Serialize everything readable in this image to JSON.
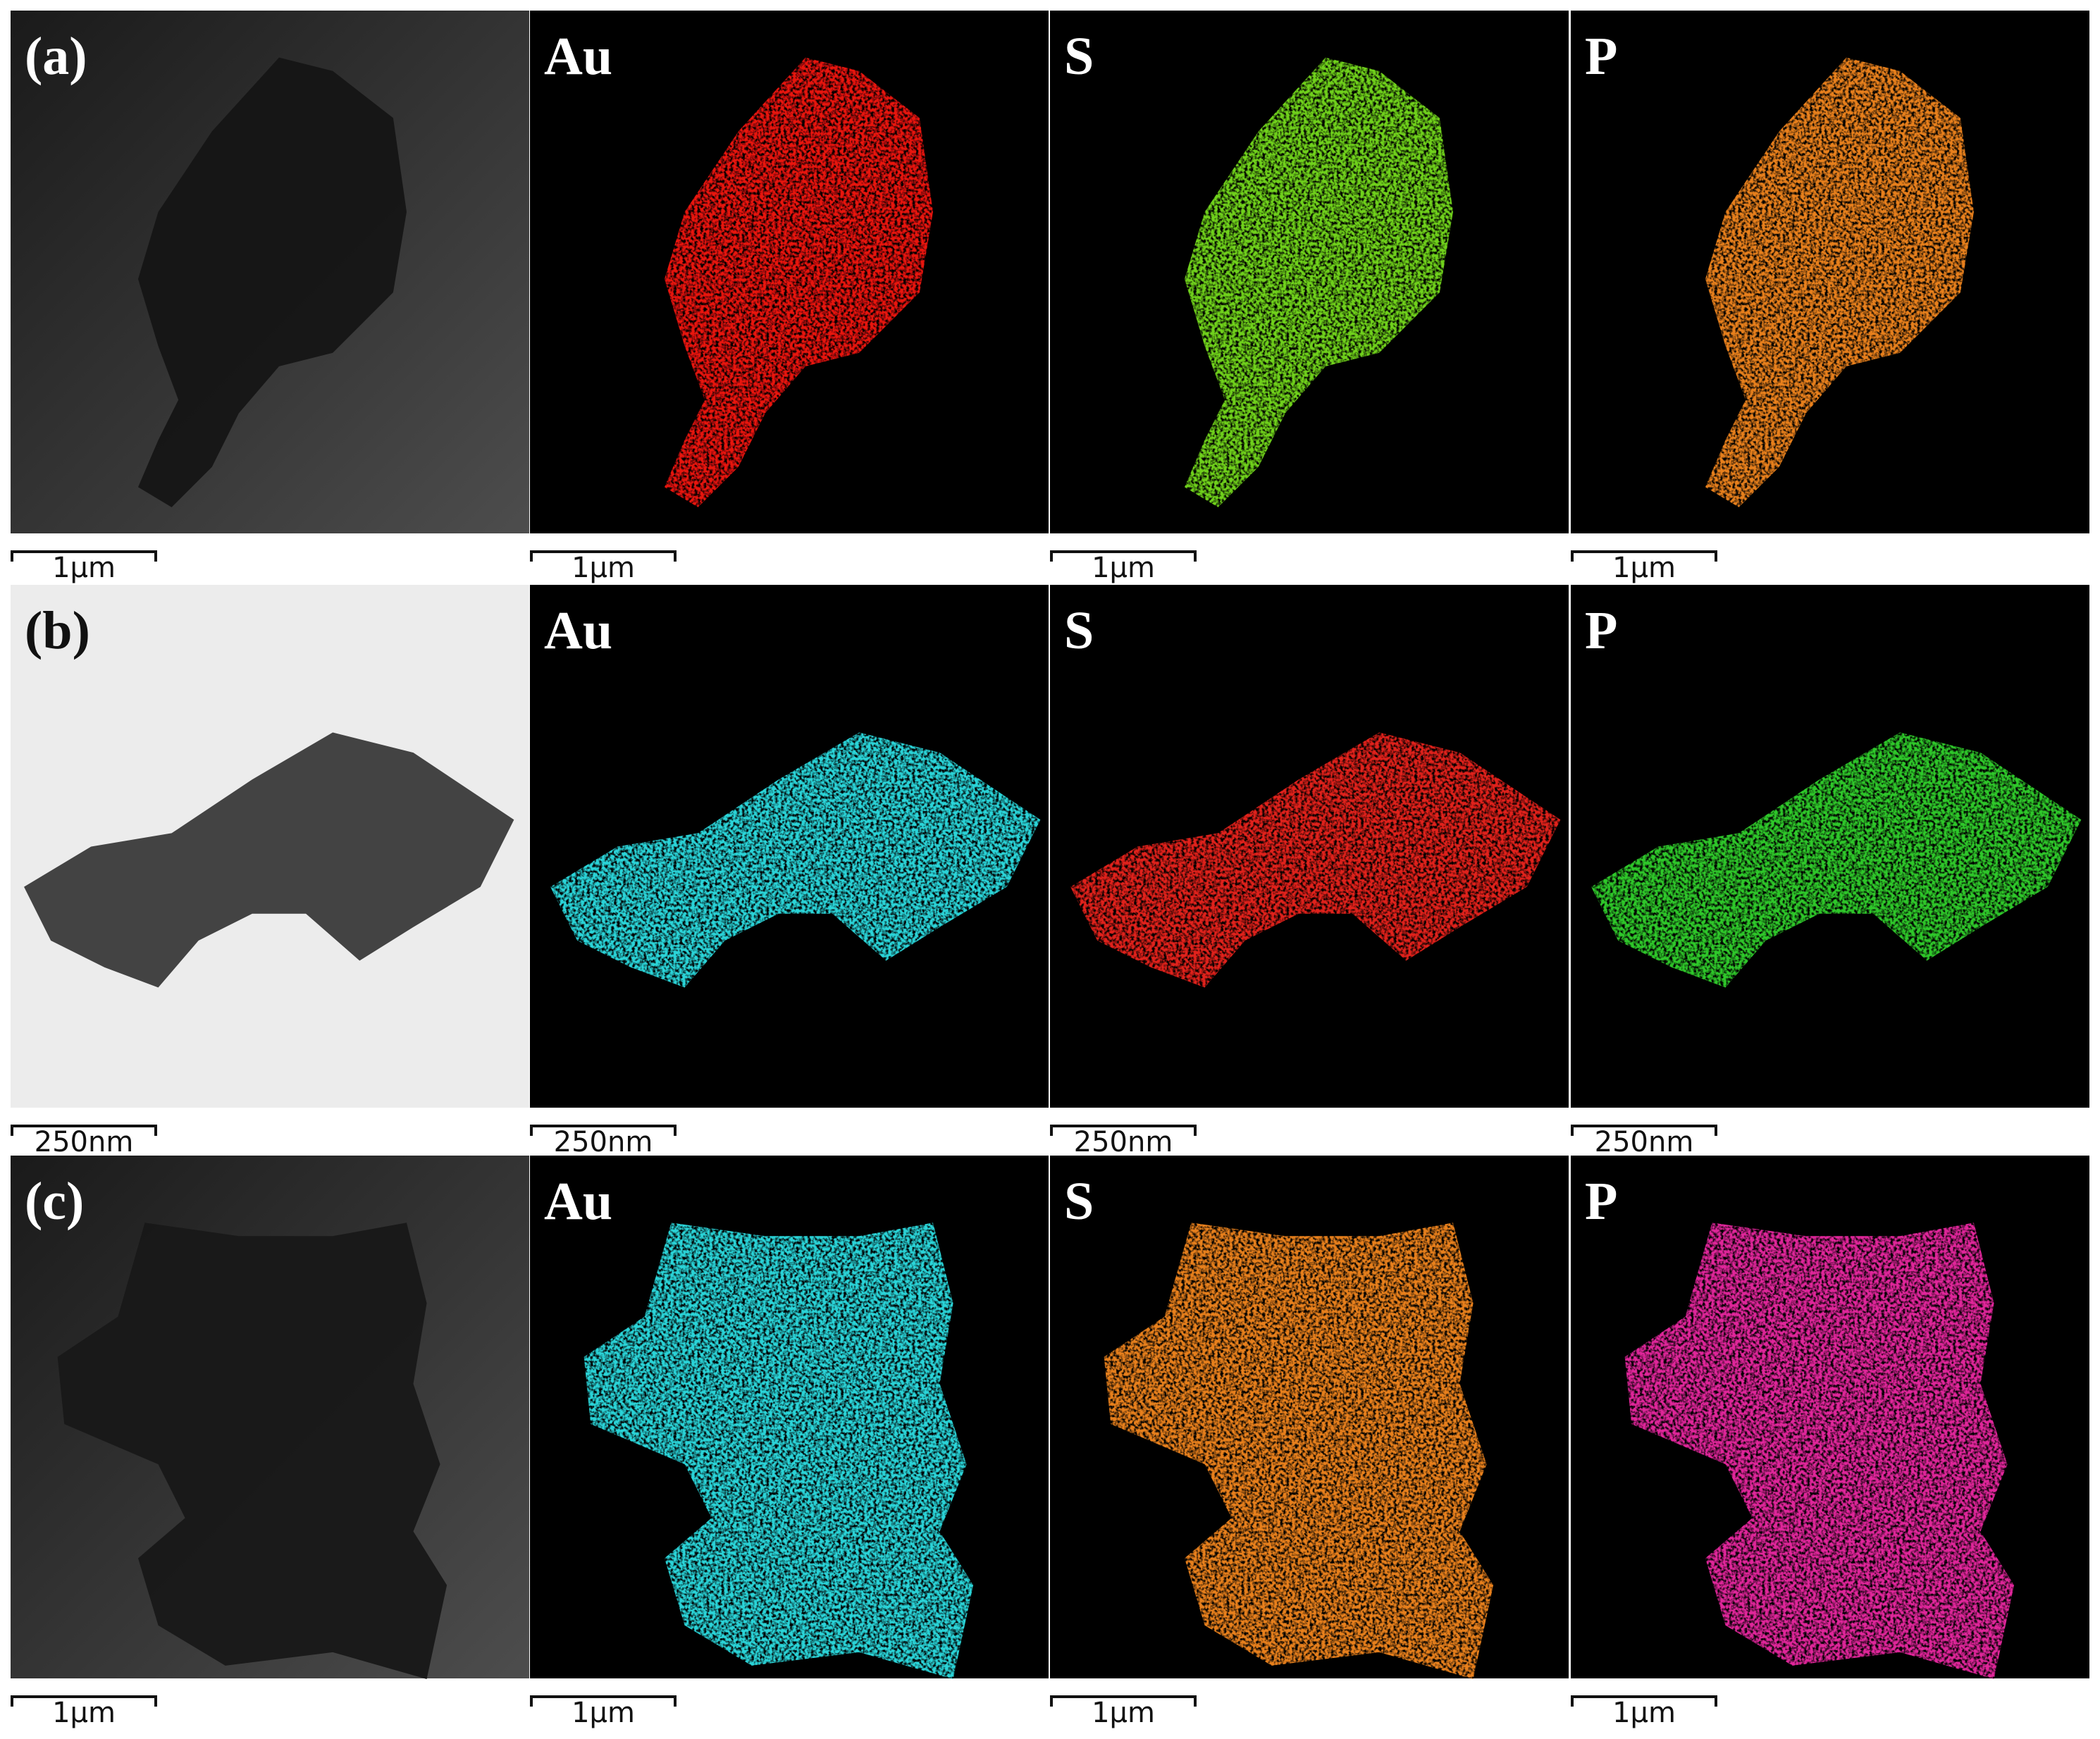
{
  "rows": [
    {
      "label": "(a)",
      "elements": [
        "Au",
        "S",
        "P"
      ],
      "scale_bars": [
        "1μm",
        "1μm",
        "1μm",
        "1μm"
      ]
    },
    {
      "label": "(b)",
      "elements": [
        "Au",
        "S",
        "P"
      ],
      "scale_bars": [
        "250nm",
        "250nm",
        "250nm",
        "250nm"
      ]
    },
    {
      "label": "(c)",
      "elements": [
        "Au",
        "S",
        "P"
      ],
      "scale_bars": [
        "1μm",
        "1μm",
        "1μm",
        "1μm"
      ]
    }
  ]
}
